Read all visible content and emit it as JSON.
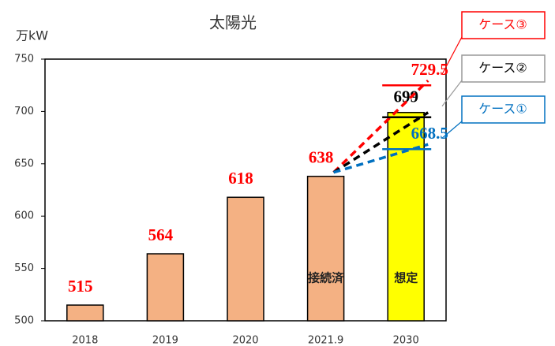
{
  "chart_data": {
    "type": "bar",
    "title": "太陽光",
    "y_label": "万kW",
    "categories": [
      "2018",
      "2019",
      "2020",
      "2021.9",
      "2030"
    ],
    "values": [
      515,
      564,
      618,
      638,
      699
    ],
    "colors": [
      "#f4b183",
      "#f4b183",
      "#f4b183",
      "#f4b183",
      "#ffff00"
    ],
    "label_colors": [
      "#ff0000",
      "#ff0000",
      "#ff0000",
      "#ff0000",
      "#000000"
    ],
    "ylim": [
      500,
      750
    ],
    "yticks": [
      500,
      550,
      600,
      650,
      700,
      750
    ],
    "annotations": [
      {
        "text": "接続済",
        "category": 3
      },
      {
        "text": "想定",
        "category": 4
      }
    ],
    "cases": [
      {
        "name": "ケース③",
        "value": 729.5,
        "color": "#ff0000"
      },
      {
        "name": "ケース②",
        "value": 699,
        "color": "#000000"
      },
      {
        "name": "ケース①",
        "value": 668.5,
        "color": "#0070c0"
      }
    ]
  }
}
